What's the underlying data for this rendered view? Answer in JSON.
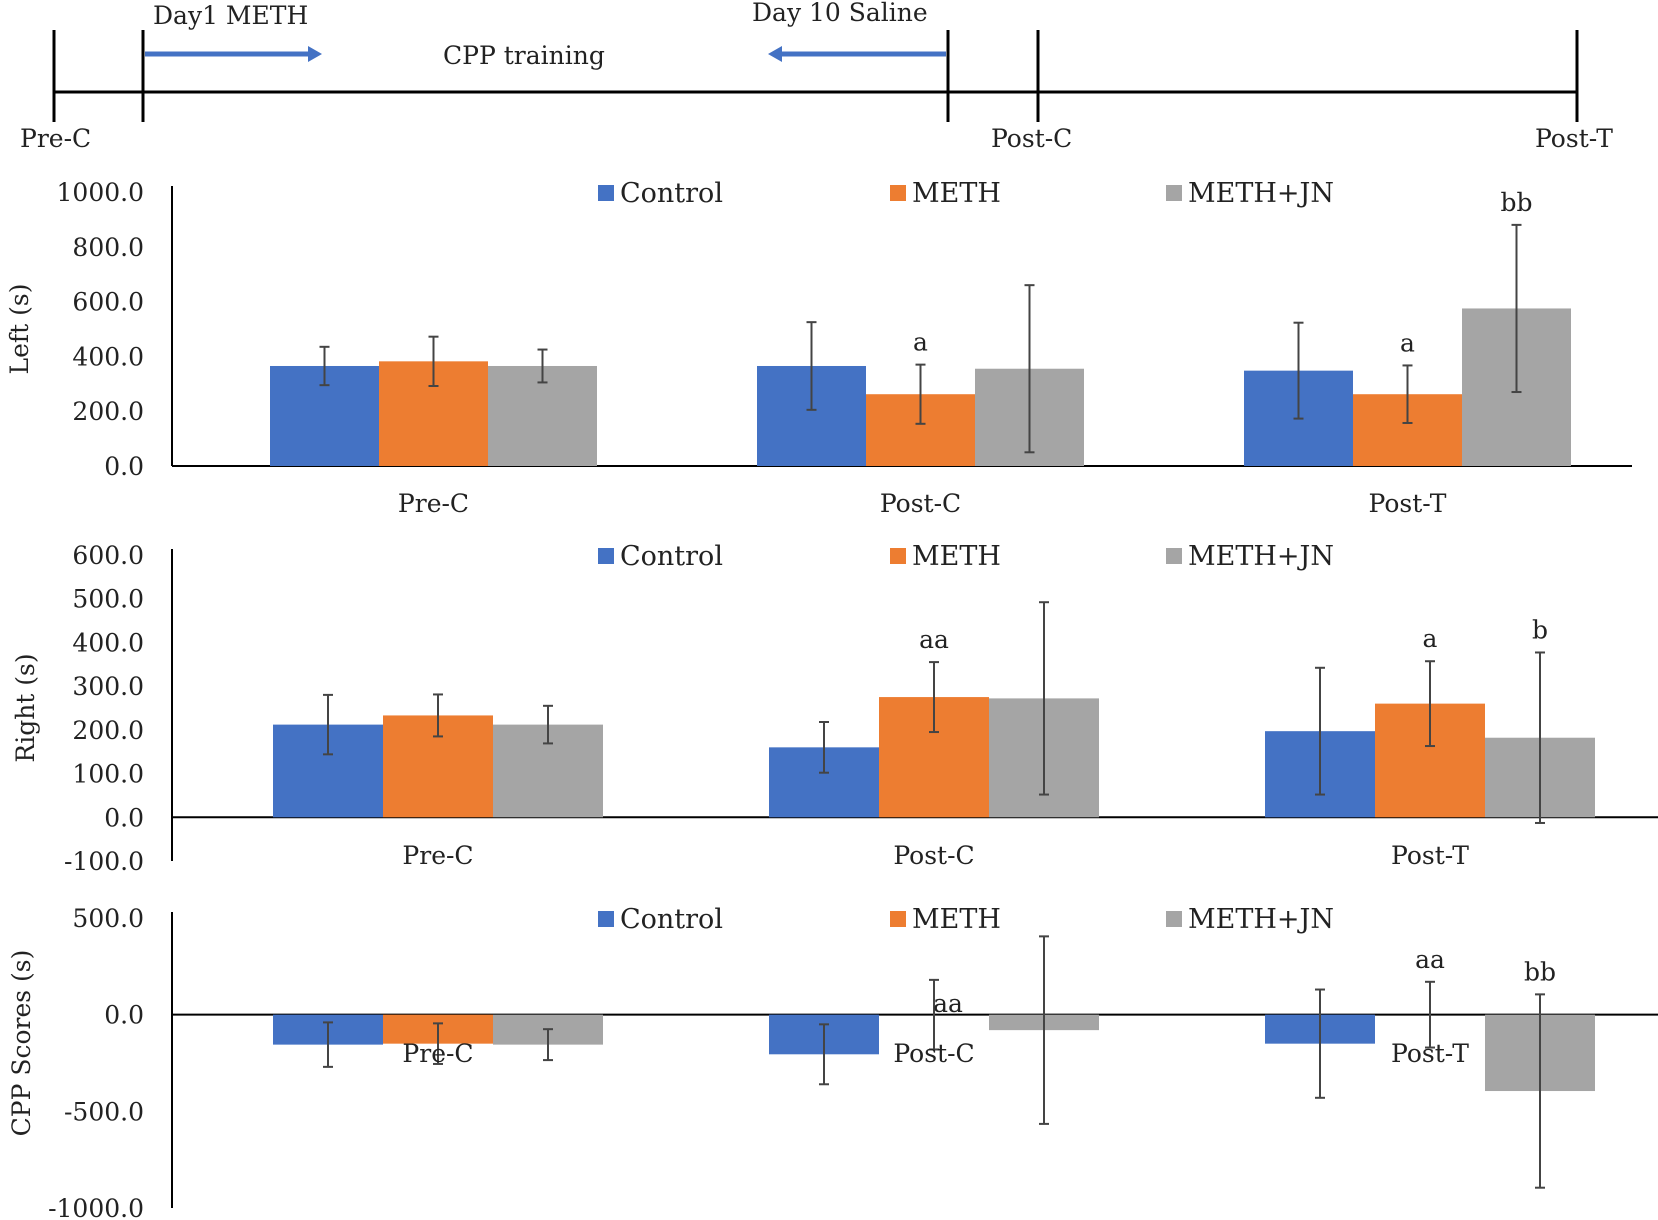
{
  "timeline": {
    "labels": [
      "Pre-C",
      "Post-C",
      "Post-T"
    ],
    "left_caption": "Day1 METH",
    "right_caption": "Day 10 Saline",
    "center_caption": "CPP training",
    "arrow_color": "#4472C4"
  },
  "legend": {
    "items": [
      {
        "label": "Control",
        "color": "#4472C4"
      },
      {
        "label": "METH",
        "color": "#ED7D31"
      },
      {
        "label": "METH+JN",
        "color": "#A5A5A5"
      }
    ]
  },
  "chart_data": [
    {
      "type": "bar",
      "title": "",
      "ylabel": "Left (s)",
      "xlabel": "",
      "ylim": [
        0,
        1000
      ],
      "yticks": [
        0,
        200,
        400,
        600,
        800,
        1000
      ],
      "ytick_labels": [
        "0.0",
        "200.0",
        "400.0",
        "600.0",
        "800.0",
        "1000.0"
      ],
      "categories": [
        "Pre-C",
        "Post-C",
        "Post-T"
      ],
      "series": [
        {
          "name": "Control",
          "values": [
            365,
            365,
            348
          ],
          "errors": [
            70,
            160,
            175
          ]
        },
        {
          "name": "METH",
          "values": [
            382,
            262,
            262
          ],
          "errors": [
            90,
            108,
            105
          ]
        },
        {
          "name": "METH+JN",
          "values": [
            365,
            355,
            575
          ],
          "errors": [
            60,
            305,
            305
          ]
        }
      ],
      "annotations": [
        {
          "category": 1,
          "series": 1,
          "text": "a"
        },
        {
          "category": 2,
          "series": 1,
          "text": "a"
        },
        {
          "category": 2,
          "series": 2,
          "text": "bb"
        }
      ]
    },
    {
      "type": "bar",
      "title": "",
      "ylabel": "Right (s)",
      "xlabel": "",
      "ylim": [
        -100,
        600
      ],
      "yticks": [
        -100,
        0,
        100,
        200,
        300,
        400,
        500,
        600
      ],
      "ytick_labels": [
        "-100.0",
        "0.0",
        "100.0",
        "200.0",
        "300.0",
        "400.0",
        "500.0",
        "600.0"
      ],
      "categories": [
        "Pre-C",
        "Post-C",
        "Post-T"
      ],
      "series": [
        {
          "name": "Control",
          "values": [
            212,
            160,
            197
          ],
          "errors": [
            68,
            58,
            145
          ]
        },
        {
          "name": "METH",
          "values": [
            233,
            275,
            260
          ],
          "errors": [
            48,
            80,
            97
          ]
        },
        {
          "name": "METH+JN",
          "values": [
            212,
            272,
            182
          ],
          "errors": [
            43,
            220,
            195
          ]
        }
      ],
      "annotations": [
        {
          "category": 1,
          "series": 1,
          "text": "aa"
        },
        {
          "category": 2,
          "series": 1,
          "text": "a"
        },
        {
          "category": 2,
          "series": 2,
          "text": "b"
        }
      ]
    },
    {
      "type": "bar",
      "title": "",
      "ylabel": "CPP Scores (s)",
      "xlabel": "",
      "ylim": [
        -1000,
        500
      ],
      "yticks": [
        -1000,
        -500,
        0,
        500
      ],
      "ytick_labels": [
        "-1000.0",
        "-500.0",
        "0.0",
        "500.0"
      ],
      "categories": [
        "Pre-C",
        "Post-C",
        "Post-T"
      ],
      "series": [
        {
          "name": "Control",
          "values": [
            -155,
            -205,
            -150
          ],
          "errors": [
            115,
            155,
            280
          ]
        },
        {
          "name": "METH",
          "values": [
            -150,
            0,
            0
          ],
          "errors": [
            105,
            180,
            170
          ]
        },
        {
          "name": "METH+JN",
          "values": [
            -155,
            -80,
            -395
          ],
          "errors": [
            80,
            485,
            500
          ]
        }
      ],
      "annotations": [
        {
          "category": 1,
          "series": 1,
          "text": "aa"
        },
        {
          "category": 2,
          "series": 1,
          "text": "aa"
        },
        {
          "category": 2,
          "series": 2,
          "text": "bb"
        }
      ]
    }
  ]
}
